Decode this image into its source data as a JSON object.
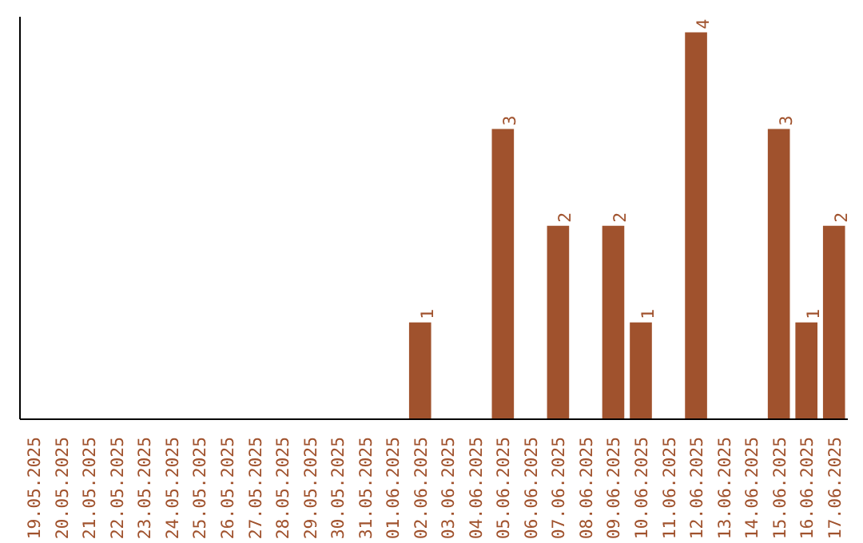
{
  "chart_data": {
    "type": "bar",
    "categories": [
      "19.05.2025",
      "20.05.2025",
      "21.05.2025",
      "22.05.2025",
      "23.05.2025",
      "24.05.2025",
      "25.05.2025",
      "26.05.2025",
      "27.05.2025",
      "28.05.2025",
      "29.05.2025",
      "30.05.2025",
      "31.05.2025",
      "01.06.2025",
      "02.06.2025",
      "03.06.2025",
      "04.06.2025",
      "05.06.2025",
      "06.06.2025",
      "07.06.2025",
      "08.06.2025",
      "09.06.2025",
      "10.06.2025",
      "11.06.2025",
      "12.06.2025",
      "13.06.2025",
      "14.06.2025",
      "15.06.2025",
      "16.06.2025",
      "17.06.2025"
    ],
    "values": [
      null,
      null,
      null,
      null,
      null,
      null,
      null,
      null,
      null,
      null,
      null,
      null,
      null,
      null,
      1,
      null,
      null,
      3,
      null,
      2,
      null,
      2,
      1,
      null,
      4,
      null,
      null,
      3,
      1,
      2
    ],
    "value_labels": [
      null,
      null,
      null,
      null,
      null,
      null,
      null,
      null,
      null,
      null,
      null,
      null,
      null,
      null,
      "1",
      null,
      null,
      "3",
      null,
      "2",
      null,
      "2",
      "1",
      null,
      "4",
      null,
      null,
      "3",
      "1",
      "2"
    ],
    "color": "#a0522d",
    "ylim": [
      0,
      4.16
    ],
    "tick_labels": "x",
    "grid": false
  }
}
